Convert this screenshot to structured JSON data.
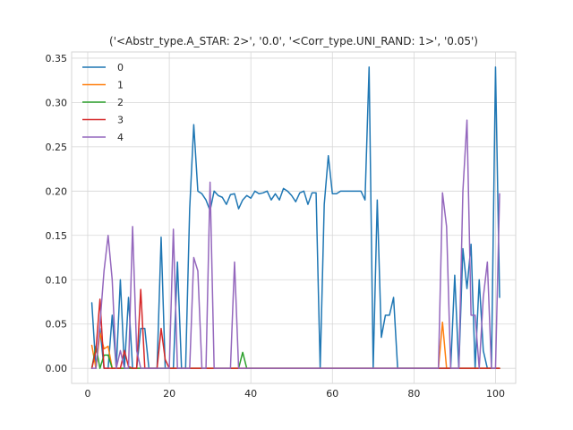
{
  "chart_data": {
    "type": "line",
    "title": "('<Abstr_type.A_STAR: 2>', '0.0', '<Corr_type.UNI_RAND: 1>', '0.05')",
    "xlabel": "",
    "ylabel": "",
    "xlim": [
      -3.95,
      104.95
    ],
    "ylim": [
      -0.017,
      0.357
    ],
    "xticks": [
      0,
      20,
      40,
      60,
      80,
      100
    ],
    "xtick_labels": [
      "0",
      "20",
      "40",
      "60",
      "80",
      "100"
    ],
    "yticks": [
      0.0,
      0.05,
      0.1,
      0.15,
      0.2,
      0.25,
      0.3,
      0.35
    ],
    "ytick_labels": [
      "0.00",
      "0.05",
      "0.10",
      "0.15",
      "0.20",
      "0.25",
      "0.30",
      "0.35"
    ],
    "grid": true,
    "legend_position": "upper-left",
    "x": [
      1,
      2,
      3,
      4,
      5,
      6,
      7,
      8,
      9,
      10,
      11,
      12,
      13,
      14,
      15,
      16,
      17,
      18,
      19,
      20,
      21,
      22,
      23,
      24,
      25,
      26,
      27,
      28,
      29,
      30,
      31,
      32,
      33,
      34,
      35,
      36,
      37,
      38,
      39,
      40,
      41,
      42,
      43,
      44,
      45,
      46,
      47,
      48,
      49,
      50,
      51,
      52,
      53,
      54,
      55,
      56,
      57,
      58,
      59,
      60,
      61,
      62,
      63,
      64,
      65,
      66,
      67,
      68,
      69,
      70,
      71,
      72,
      73,
      74,
      75,
      76,
      77,
      78,
      79,
      80,
      81,
      82,
      83,
      84,
      85,
      86,
      87,
      88,
      89,
      90,
      91,
      92,
      93,
      94,
      95,
      96,
      97,
      98,
      99,
      100,
      101
    ],
    "series": [
      {
        "name": "0",
        "color": "#1f77b4",
        "values": [
          0.074,
          0.0,
          0.045,
          0.0,
          0.0,
          0.06,
          0.0,
          0.1,
          0.0,
          0.08,
          0.0,
          0.0,
          0.045,
          0.045,
          0.0,
          0.0,
          0.0,
          0.148,
          0.0,
          0.0,
          0.0,
          0.12,
          0.0,
          0.0,
          0.18,
          0.275,
          0.2,
          0.197,
          0.19,
          0.178,
          0.2,
          0.195,
          0.193,
          0.185,
          0.196,
          0.197,
          0.18,
          0.19,
          0.195,
          0.192,
          0.2,
          0.197,
          0.198,
          0.2,
          0.19,
          0.197,
          0.19,
          0.203,
          0.2,
          0.195,
          0.188,
          0.198,
          0.2,
          0.185,
          0.198,
          0.198,
          0.0,
          0.185,
          0.24,
          0.197,
          0.197,
          0.2,
          0.2,
          0.2,
          0.2,
          0.2,
          0.2,
          0.19,
          0.34,
          0.0,
          0.19,
          0.035,
          0.06,
          0.06,
          0.08,
          0.0,
          0.0,
          0.0,
          0.0,
          0.0,
          0.0,
          0.0,
          0.0,
          0.0,
          0.0,
          0.0,
          0.0,
          0.0,
          0.0,
          0.105,
          0.0,
          0.135,
          0.09,
          0.14,
          0.0,
          0.1,
          0.02,
          0.0,
          0.0,
          0.34,
          0.08
        ]
      },
      {
        "name": "1",
        "color": "#ff7f0e",
        "values": [
          0.026,
          0.0,
          0.04,
          0.022,
          0.025,
          0.0,
          0.0,
          0.0,
          0.0,
          0.0,
          0.0,
          0.0,
          0.0,
          0.0,
          0.0,
          0.0,
          0.0,
          0.0,
          0.0,
          0.0,
          0.0,
          0.0,
          0.0,
          0.0,
          0.0,
          0.0,
          0.0,
          0.0,
          0.0,
          0.0,
          0.0,
          0.0,
          0.0,
          0.0,
          0.0,
          0.0,
          0.0,
          0.0,
          0.0,
          0.0,
          0.0,
          0.0,
          0.0,
          0.0,
          0.0,
          0.0,
          0.0,
          0.0,
          0.0,
          0.0,
          0.0,
          0.0,
          0.0,
          0.0,
          0.0,
          0.0,
          0.0,
          0.0,
          0.0,
          0.0,
          0.0,
          0.0,
          0.0,
          0.0,
          0.0,
          0.0,
          0.0,
          0.0,
          0.0,
          0.0,
          0.0,
          0.0,
          0.0,
          0.0,
          0.0,
          0.0,
          0.0,
          0.0,
          0.0,
          0.0,
          0.0,
          0.0,
          0.0,
          0.0,
          0.0,
          0.0,
          0.052,
          0.0,
          0.0,
          0.0,
          0.0,
          0.0,
          0.0,
          0.0,
          0.0,
          0.0,
          0.0,
          0.0,
          0.0,
          0.0,
          0.0
        ]
      },
      {
        "name": "2",
        "color": "#2ca02c",
        "values": [
          0.0,
          0.025,
          0.0,
          0.015,
          0.015,
          0.0,
          0.0,
          0.0,
          0.0,
          0.0,
          0.0,
          0.0,
          0.0,
          0.0,
          0.0,
          0.0,
          0.0,
          0.0,
          0.0,
          0.0,
          0.0,
          0.0,
          0.0,
          0.0,
          0.0,
          0.0,
          0.0,
          0.0,
          0.0,
          0.0,
          0.0,
          0.0,
          0.0,
          0.0,
          0.0,
          0.0,
          0.0,
          0.018,
          0.0,
          0.0,
          0.0,
          0.0,
          0.0,
          0.0,
          0.0,
          0.0,
          0.0,
          0.0,
          0.0,
          0.0,
          0.0,
          0.0,
          0.0,
          0.0,
          0.0,
          0.0,
          0.0,
          0.0,
          0.0,
          0.0,
          0.0,
          0.0,
          0.0,
          0.0,
          0.0,
          0.0,
          0.0,
          0.0,
          0.0,
          0.0,
          0.0,
          0.0,
          0.0,
          0.0,
          0.0,
          0.0,
          0.0,
          0.0,
          0.0,
          0.0,
          0.0,
          0.0,
          0.0,
          0.0,
          0.0,
          0.0,
          0.0,
          0.0,
          0.0,
          0.0,
          0.0,
          0.0,
          0.0,
          0.0,
          0.0,
          0.0,
          0.0,
          0.0,
          0.0,
          0.0,
          0.0
        ]
      },
      {
        "name": "3",
        "color": "#d62728",
        "values": [
          0.0,
          0.02,
          0.078,
          0.0,
          0.0,
          0.0,
          0.0,
          0.0,
          0.02,
          0.002,
          0.0,
          0.0,
          0.089,
          0.0,
          0.0,
          0.0,
          0.0,
          0.045,
          0.01,
          0.0,
          0.0,
          0.0,
          0.0,
          0.0,
          0.0,
          0.0,
          0.0,
          0.0,
          0.0,
          0.0,
          0.0,
          0.0,
          0.0,
          0.0,
          0.0,
          0.0,
          0.0,
          0.0,
          0.0,
          0.0,
          0.0,
          0.0,
          0.0,
          0.0,
          0.0,
          0.0,
          0.0,
          0.0,
          0.0,
          0.0,
          0.0,
          0.0,
          0.0,
          0.0,
          0.0,
          0.0,
          0.0,
          0.0,
          0.0,
          0.0,
          0.0,
          0.0,
          0.0,
          0.0,
          0.0,
          0.0,
          0.0,
          0.0,
          0.0,
          0.0,
          0.0,
          0.0,
          0.0,
          0.0,
          0.0,
          0.0,
          0.0,
          0.0,
          0.0,
          0.0,
          0.0,
          0.0,
          0.0,
          0.0,
          0.0,
          0.0,
          0.0,
          0.0,
          0.0,
          0.0,
          0.0,
          0.0,
          0.0,
          0.0,
          0.0,
          0.0,
          0.0,
          0.0,
          0.0,
          0.0,
          0.0
        ]
      },
      {
        "name": "4",
        "color": "#9467bd",
        "values": [
          0.0,
          0.0,
          0.05,
          0.11,
          0.15,
          0.1,
          0.0,
          0.02,
          0.0,
          0.0,
          0.16,
          0.02,
          0.0,
          0.0,
          0.0,
          0.0,
          0.0,
          0.0,
          0.0,
          0.0,
          0.157,
          0.0,
          0.0,
          0.0,
          0.0,
          0.125,
          0.11,
          0.0,
          0.0,
          0.21,
          0.0,
          0.0,
          0.0,
          0.0,
          0.0,
          0.12,
          0.0,
          0.0,
          0.0,
          0.0,
          0.0,
          0.0,
          0.0,
          0.0,
          0.0,
          0.0,
          0.0,
          0.0,
          0.0,
          0.0,
          0.0,
          0.0,
          0.0,
          0.0,
          0.0,
          0.0,
          0.0,
          0.0,
          0.0,
          0.0,
          0.0,
          0.0,
          0.0,
          0.0,
          0.0,
          0.0,
          0.0,
          0.0,
          0.0,
          0.0,
          0.0,
          0.0,
          0.0,
          0.0,
          0.0,
          0.0,
          0.0,
          0.0,
          0.0,
          0.0,
          0.0,
          0.0,
          0.0,
          0.0,
          0.0,
          0.0,
          0.198,
          0.16,
          0.0,
          0.0,
          0.0,
          0.2,
          0.28,
          0.06,
          0.06,
          0.0,
          0.08,
          0.12,
          0.0,
          0.0,
          0.197
        ]
      }
    ]
  }
}
